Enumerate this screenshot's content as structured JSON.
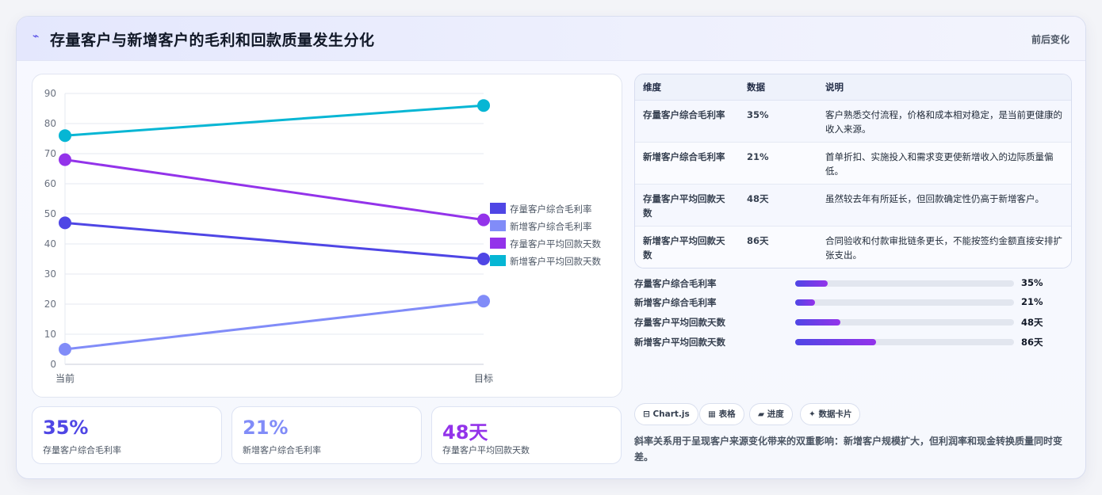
{
  "header": {
    "icon": "trend-icon",
    "title": "存量客户与新增客户的毛利和回款质量发生分化",
    "tag": "前后变化"
  },
  "chart_data": {
    "type": "line",
    "categories": [
      "当前",
      "目标"
    ],
    "ylim": [
      0,
      90
    ],
    "yticks": [
      0,
      10,
      20,
      30,
      40,
      50,
      60,
      70,
      80,
      90
    ],
    "grid": true,
    "legend_position": "right",
    "series": [
      {
        "name": "存量客户综合毛利率",
        "values": [
          47,
          35
        ],
        "color": "#4f46e5"
      },
      {
        "name": "新增客户综合毛利率",
        "values": [
          5,
          21
        ],
        "color": "#818cf8"
      },
      {
        "name": "存量客户平均回款天数",
        "values": [
          68,
          48
        ],
        "color": "#9333ea"
      },
      {
        "name": "新增客户平均回款天数",
        "values": [
          76,
          86
        ],
        "color": "#06b6d4"
      }
    ]
  },
  "kpis": [
    {
      "value": "35%",
      "label": "存量客户综合毛利率",
      "color": "#4f46e5"
    },
    {
      "value": "21%",
      "label": "新增客户综合毛利率",
      "color": "#818cf8"
    },
    {
      "value": "48天",
      "label": "存量客户平均回款天数",
      "color": "#9333ea"
    }
  ],
  "table": {
    "headers": [
      "维度",
      "数据",
      "说明"
    ],
    "rows": [
      [
        "存量客户综合毛利率",
        "35%",
        "客户熟悉交付流程，价格和成本相对稳定，是当前更健康的收入来源。"
      ],
      [
        "新增客户综合毛利率",
        "21%",
        "首单折扣、实施投入和需求变更使新增收入的边际质量偏低。"
      ],
      [
        "存量客户平均回款天数",
        "48天",
        "虽然较去年有所延长，但回款确定性仍高于新增客户。"
      ],
      [
        "新增客户平均回款天数",
        "86天",
        "合同验收和付款审批链条更长，不能按签约金额直接安排扩张支出。"
      ]
    ]
  },
  "progress": [
    {
      "label": "存量客户综合毛利率",
      "value": "35%",
      "fraction": 0.15
    },
    {
      "label": "新增客户综合毛利率",
      "value": "21%",
      "fraction": 0.09
    },
    {
      "label": "存量客户平均回款天数",
      "value": "48天",
      "fraction": 0.205
    },
    {
      "label": "新增客户平均回款天数",
      "value": "86天",
      "fraction": 0.37
    }
  ],
  "chips": [
    {
      "icon": "chart-icon",
      "glyph": "⊟",
      "label": "Chart.js"
    },
    {
      "icon": "table-icon",
      "glyph": "▦",
      "label": "表格"
    },
    {
      "icon": "progress-icon",
      "glyph": "▰",
      "label": "进度"
    },
    {
      "icon": "card-icon",
      "glyph": "✦",
      "label": "数据卡片"
    }
  ],
  "note": "斜率关系用于呈现客户来源变化带来的双重影响：新增客户规模扩大，但利润率和现金转换质量同时变差。"
}
